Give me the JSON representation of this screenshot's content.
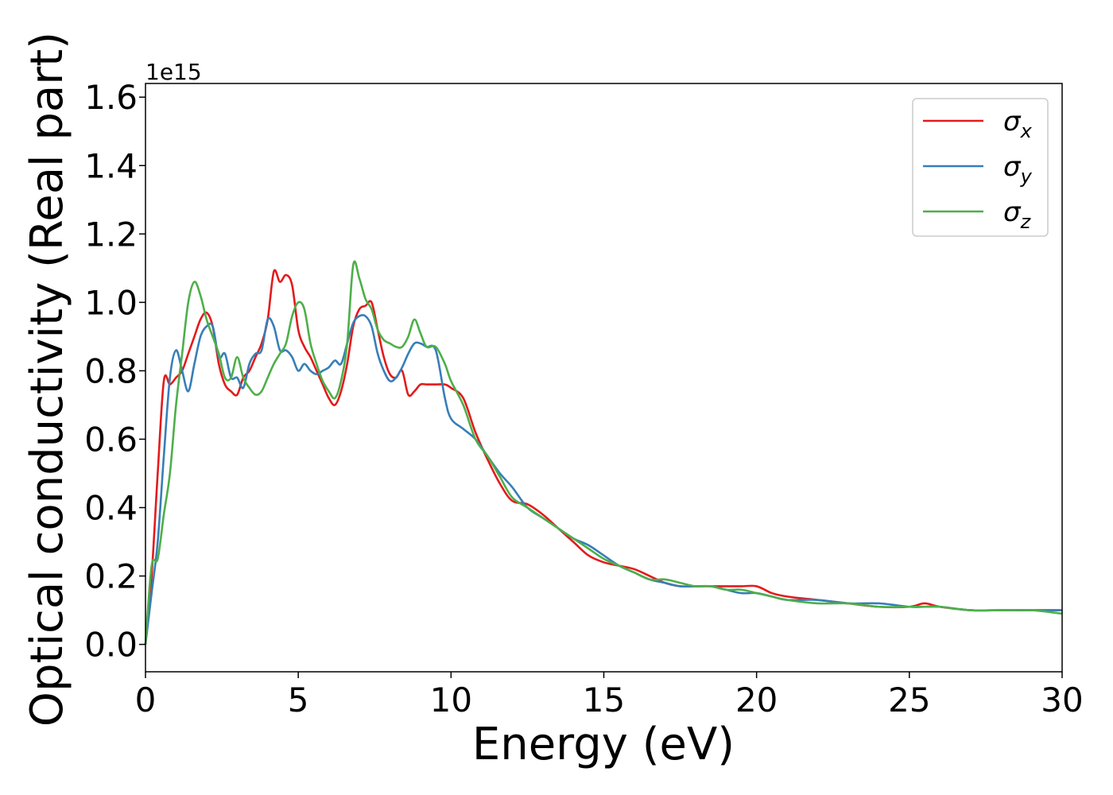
{
  "chart_data": {
    "type": "line",
    "title": "",
    "xlabel": "Energy (eV)",
    "ylabel": "Optical conductivity (Real part)",
    "y_offset_label": "1e15",
    "xlim": [
      0,
      30
    ],
    "ylim": [
      -0.08,
      1.64
    ],
    "xticks": [
      0,
      5,
      10,
      15,
      20,
      25,
      30
    ],
    "xtick_labels": [
      "0",
      "5",
      "10",
      "15",
      "20",
      "25",
      "30"
    ],
    "yticks": [
      0.0,
      0.2,
      0.4,
      0.6,
      0.8,
      1.0,
      1.2,
      1.4,
      1.6
    ],
    "ytick_labels": [
      "0.0",
      "0.2",
      "0.4",
      "0.6",
      "0.8",
      "1.0",
      "1.2",
      "1.4",
      "1.6"
    ],
    "grid": false,
    "legend_position": "top-right",
    "series": [
      {
        "name": "σx",
        "legend_main": "σ",
        "legend_sub": "x",
        "color": "#e41a1c",
        "x": [
          0,
          0.2,
          0.4,
          0.6,
          0.8,
          1.0,
          1.2,
          1.4,
          1.6,
          1.8,
          2.0,
          2.2,
          2.4,
          2.6,
          2.8,
          3.0,
          3.2,
          3.4,
          3.6,
          3.8,
          4.0,
          4.2,
          4.4,
          4.6,
          4.8,
          5.0,
          5.2,
          5.4,
          5.6,
          5.8,
          6.0,
          6.2,
          6.4,
          6.6,
          6.8,
          7.0,
          7.2,
          7.4,
          7.6,
          7.8,
          8.0,
          8.2,
          8.4,
          8.6,
          8.8,
          9.0,
          9.2,
          9.5,
          9.8,
          10.0,
          10.4,
          10.8,
          11.2,
          11.6,
          12.0,
          12.5,
          13.0,
          13.5,
          14.0,
          14.5,
          15.0,
          15.5,
          16.0,
          16.5,
          17.0,
          17.5,
          18.0,
          18.5,
          19.0,
          19.5,
          20.0,
          20.5,
          21.0,
          22.0,
          23.0,
          24.0,
          25.0,
          25.5,
          26.0,
          27.0,
          28.0,
          29.0,
          30.0
        ],
        "values": [
          0.0,
          0.2,
          0.5,
          0.77,
          0.76,
          0.78,
          0.8,
          0.85,
          0.9,
          0.95,
          0.97,
          0.93,
          0.82,
          0.76,
          0.74,
          0.73,
          0.78,
          0.8,
          0.84,
          0.88,
          0.95,
          1.09,
          1.06,
          1.08,
          1.05,
          0.92,
          0.87,
          0.84,
          0.8,
          0.76,
          0.72,
          0.7,
          0.74,
          0.82,
          0.93,
          0.98,
          0.99,
          1.0,
          0.92,
          0.84,
          0.79,
          0.78,
          0.8,
          0.73,
          0.74,
          0.76,
          0.76,
          0.76,
          0.76,
          0.75,
          0.72,
          0.62,
          0.54,
          0.47,
          0.42,
          0.41,
          0.38,
          0.34,
          0.3,
          0.26,
          0.24,
          0.23,
          0.22,
          0.2,
          0.18,
          0.17,
          0.17,
          0.17,
          0.17,
          0.17,
          0.17,
          0.15,
          0.14,
          0.13,
          0.12,
          0.11,
          0.11,
          0.12,
          0.11,
          0.1,
          0.1,
          0.1,
          0.1
        ]
      },
      {
        "name": "σy",
        "legend_main": "σ",
        "legend_sub": "y",
        "color": "#377eb8",
        "x": [
          0,
          0.2,
          0.4,
          0.6,
          0.8,
          1.0,
          1.2,
          1.4,
          1.6,
          1.8,
          2.0,
          2.2,
          2.4,
          2.6,
          2.8,
          3.0,
          3.2,
          3.4,
          3.6,
          3.8,
          4.0,
          4.2,
          4.4,
          4.6,
          4.8,
          5.0,
          5.2,
          5.4,
          5.6,
          5.8,
          6.0,
          6.2,
          6.4,
          6.6,
          6.8,
          7.0,
          7.2,
          7.4,
          7.6,
          7.8,
          8.0,
          8.2,
          8.4,
          8.6,
          8.8,
          9.0,
          9.2,
          9.5,
          9.8,
          10.0,
          10.4,
          10.8,
          11.2,
          11.6,
          12.0,
          12.5,
          13.0,
          13.5,
          14.0,
          14.5,
          15.0,
          15.5,
          16.0,
          16.5,
          17.0,
          17.5,
          18.0,
          18.5,
          19.0,
          19.5,
          20.0,
          20.5,
          21.0,
          22.0,
          23.0,
          24.0,
          25.0,
          25.5,
          26.0,
          27.0,
          28.0,
          29.0,
          30.0
        ],
        "values": [
          0.0,
          0.15,
          0.3,
          0.55,
          0.78,
          0.86,
          0.8,
          0.74,
          0.82,
          0.9,
          0.93,
          0.93,
          0.84,
          0.85,
          0.78,
          0.78,
          0.75,
          0.82,
          0.85,
          0.86,
          0.95,
          0.93,
          0.86,
          0.86,
          0.84,
          0.8,
          0.82,
          0.8,
          0.79,
          0.8,
          0.81,
          0.83,
          0.82,
          0.88,
          0.94,
          0.96,
          0.96,
          0.93,
          0.85,
          0.8,
          0.77,
          0.78,
          0.81,
          0.85,
          0.88,
          0.88,
          0.87,
          0.86,
          0.72,
          0.66,
          0.63,
          0.6,
          0.55,
          0.5,
          0.46,
          0.4,
          0.37,
          0.34,
          0.31,
          0.29,
          0.26,
          0.23,
          0.21,
          0.19,
          0.18,
          0.17,
          0.17,
          0.17,
          0.16,
          0.15,
          0.15,
          0.14,
          0.13,
          0.13,
          0.12,
          0.12,
          0.11,
          0.11,
          0.11,
          0.1,
          0.1,
          0.1,
          0.1
        ]
      },
      {
        "name": "σz",
        "legend_main": "σ",
        "legend_sub": "z",
        "color": "#4daf4a",
        "x": [
          0,
          0.2,
          0.4,
          0.6,
          0.8,
          1.0,
          1.2,
          1.4,
          1.6,
          1.8,
          2.0,
          2.2,
          2.4,
          2.6,
          2.8,
          3.0,
          3.2,
          3.4,
          3.6,
          3.8,
          4.0,
          4.2,
          4.4,
          4.6,
          4.8,
          5.0,
          5.2,
          5.4,
          5.6,
          5.8,
          6.0,
          6.2,
          6.4,
          6.6,
          6.8,
          7.0,
          7.2,
          7.4,
          7.6,
          7.8,
          8.0,
          8.2,
          8.4,
          8.6,
          8.8,
          9.0,
          9.2,
          9.5,
          9.8,
          10.0,
          10.4,
          10.8,
          11.2,
          11.6,
          12.0,
          12.5,
          13.0,
          13.5,
          14.0,
          14.5,
          15.0,
          15.5,
          16.0,
          16.5,
          17.0,
          17.5,
          18.0,
          18.5,
          19.0,
          19.5,
          20.0,
          20.5,
          21.0,
          22.0,
          23.0,
          24.0,
          25.0,
          25.5,
          26.0,
          27.0,
          28.0,
          29.0,
          30.0
        ],
        "values": [
          0.0,
          0.23,
          0.25,
          0.38,
          0.5,
          0.7,
          0.85,
          1.0,
          1.06,
          1.02,
          0.95,
          0.9,
          0.85,
          0.78,
          0.78,
          0.84,
          0.78,
          0.75,
          0.73,
          0.74,
          0.78,
          0.82,
          0.85,
          0.88,
          0.96,
          1.0,
          0.98,
          0.88,
          0.82,
          0.77,
          0.74,
          0.72,
          0.77,
          0.88,
          1.11,
          1.07,
          1.01,
          0.98,
          0.92,
          0.89,
          0.88,
          0.87,
          0.87,
          0.9,
          0.95,
          0.91,
          0.87,
          0.87,
          0.82,
          0.77,
          0.7,
          0.6,
          0.55,
          0.49,
          0.43,
          0.4,
          0.37,
          0.34,
          0.31,
          0.28,
          0.25,
          0.23,
          0.21,
          0.19,
          0.19,
          0.18,
          0.17,
          0.17,
          0.16,
          0.16,
          0.15,
          0.14,
          0.13,
          0.12,
          0.12,
          0.11,
          0.11,
          0.11,
          0.11,
          0.1,
          0.1,
          0.1,
          0.09
        ]
      }
    ]
  }
}
